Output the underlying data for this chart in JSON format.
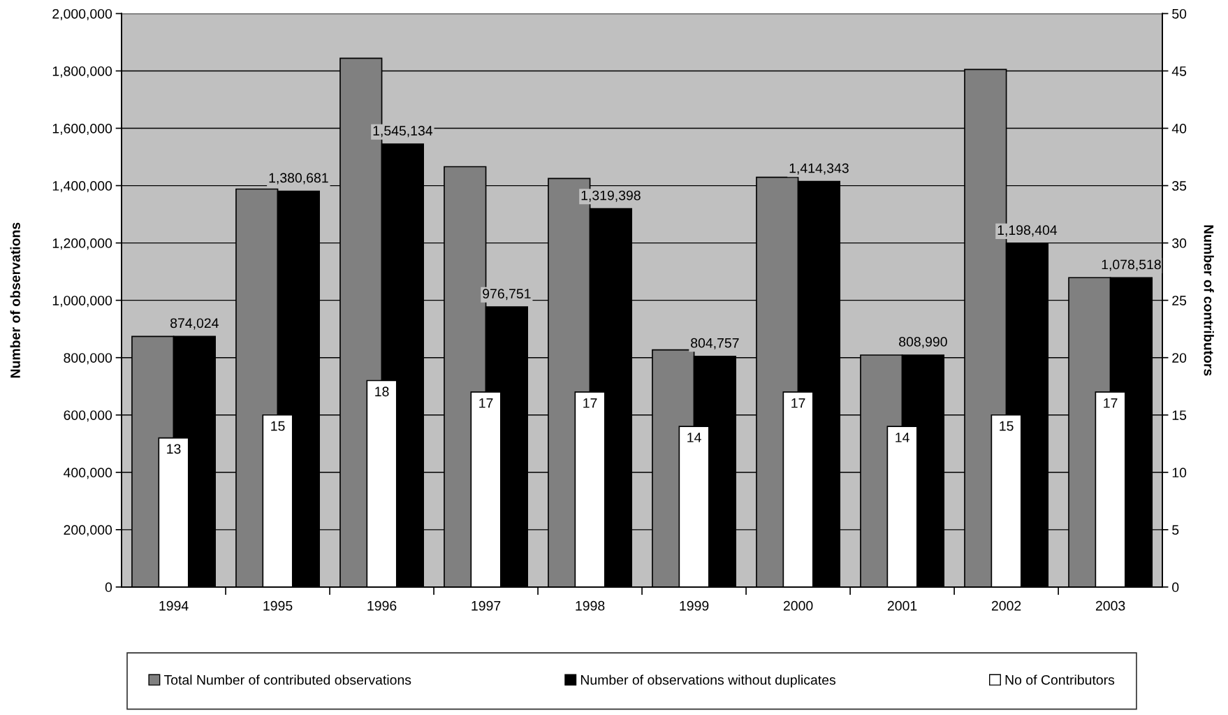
{
  "chart_data": {
    "type": "bar",
    "ylabel": "Number of observations",
    "y2label": "Number of contributors",
    "categories": [
      "1994",
      "1995",
      "1996",
      "1997",
      "1998",
      "1999",
      "2000",
      "2001",
      "2002",
      "2003"
    ],
    "series": [
      {
        "name": "Total Number of contributed observations",
        "color": "#808080",
        "values": [
          874000,
          1388000,
          1844000,
          1466000,
          1425000,
          827000,
          1429000,
          809000,
          1805000,
          1079000
        ]
      },
      {
        "name": "Number of observations without duplicates",
        "color": "#000000",
        "values": [
          874024,
          1380681,
          1545134,
          976751,
          1319398,
          804757,
          1414343,
          808990,
          1198404,
          1078518
        ],
        "value_labels": [
          "874,024",
          "1,380,681",
          "1,545,134",
          "976,751",
          "1,319,398",
          "804,757",
          "1,414,343",
          "808,990",
          "1,198,404",
          "1,078,518"
        ]
      },
      {
        "name": "No of Contributors",
        "color": "#ffffff",
        "axis": "y2",
        "values": [
          13,
          15,
          18,
          17,
          17,
          14,
          17,
          14,
          15,
          17
        ],
        "value_labels": [
          "13",
          "15",
          "18",
          "17",
          "17",
          "14",
          "17",
          "14",
          "15",
          "17"
        ]
      }
    ],
    "ylim": [
      0,
      2000000
    ],
    "yticks": [
      {
        "value": 0,
        "label": "0"
      },
      {
        "value": 200000,
        "label": "200,000"
      },
      {
        "value": 400000,
        "label": "400,000"
      },
      {
        "value": 600000,
        "label": "600,000"
      },
      {
        "value": 800000,
        "label": "800,000"
      },
      {
        "value": 1000000,
        "label": "1,000,000"
      },
      {
        "value": 1200000,
        "label": "1,200,000"
      },
      {
        "value": 1400000,
        "label": "1,400,000"
      },
      {
        "value": 1600000,
        "label": "1,600,000"
      },
      {
        "value": 1800000,
        "label": "1,800,000"
      },
      {
        "value": 2000000,
        "label": "2,000,000"
      }
    ],
    "y2lim": [
      0,
      50
    ],
    "y2ticks": [
      0,
      5,
      10,
      15,
      20,
      25,
      30,
      35,
      40,
      45,
      50
    ],
    "grid": "y",
    "legend": "bottom"
  }
}
